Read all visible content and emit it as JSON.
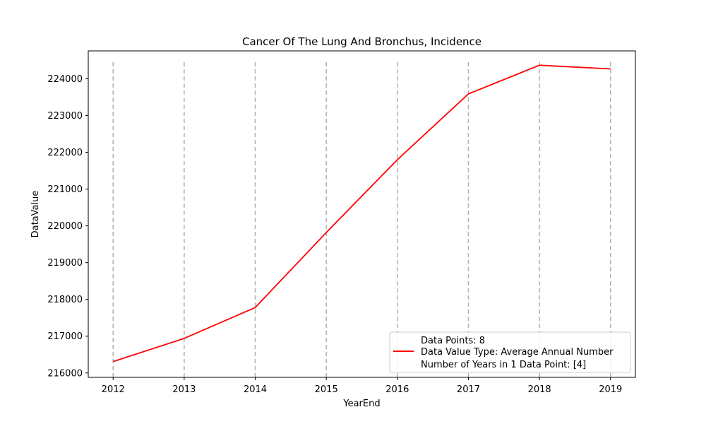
{
  "chart_data": {
    "type": "line",
    "title": "Cancer Of The Lung And Bronchus, Incidence",
    "xlabel": "YearEnd",
    "ylabel": "DataValue",
    "x": [
      2012,
      2013,
      2014,
      2015,
      2016,
      2017,
      2018,
      2019
    ],
    "x_ticks": [
      "2012",
      "2013",
      "2014",
      "2015",
      "2016",
      "2017",
      "2018",
      "2019"
    ],
    "y_ticks": [
      "216000",
      "217000",
      "218000",
      "219000",
      "220000",
      "221000",
      "222000",
      "223000",
      "224000"
    ],
    "y_tick_values": [
      216000,
      217000,
      218000,
      219000,
      220000,
      221000,
      222000,
      223000,
      224000
    ],
    "xlim": [
      2011.65,
      2019.35
    ],
    "ylim": [
      215880,
      224760
    ],
    "series": [
      {
        "values": [
          216310,
          216940,
          217780,
          219820,
          221800,
          223590,
          224370,
          224270
        ],
        "color": "#ff0000"
      }
    ],
    "vertical_gridlines": true,
    "gridline_color": "#b0b0b0",
    "legend": {
      "placement": "lower-right",
      "entries": [
        "Data Points: 8",
        "Data Value Type: Average Annual Number",
        "Number of Years in 1 Data Point: [4]"
      ],
      "marker_entry_index": 1
    }
  }
}
